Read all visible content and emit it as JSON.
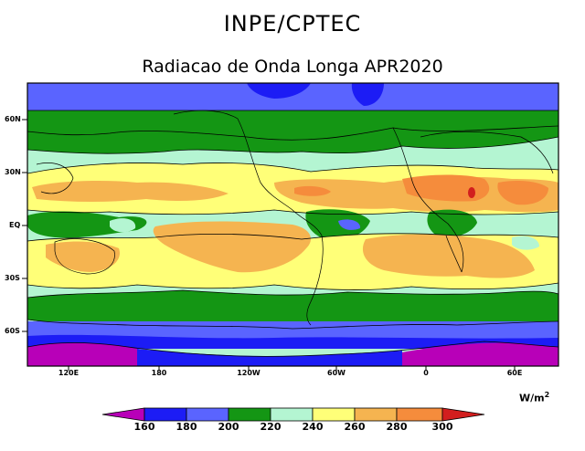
{
  "header": {
    "title": "INPE/CPTEC",
    "subtitle": "Radiacao de Onda Longa APR2020"
  },
  "map": {
    "lat_labels": [
      "60N",
      "30N",
      "EQ",
      "30S",
      "60S"
    ],
    "lon_labels": [
      "120E",
      "180",
      "120W",
      "60W",
      "0",
      "60E"
    ]
  },
  "colorbar": {
    "units": "W/m",
    "units_exp": "2",
    "levels": [
      "160",
      "180",
      "200",
      "220",
      "240",
      "260",
      "280",
      "300"
    ],
    "colors": [
      "#b800b8",
      "#1c1cf5",
      "#5a64ff",
      "#149614",
      "#b4f5d2",
      "#ffff78",
      "#f5b450",
      "#f58c3c",
      "#d21e1e"
    ]
  }
}
